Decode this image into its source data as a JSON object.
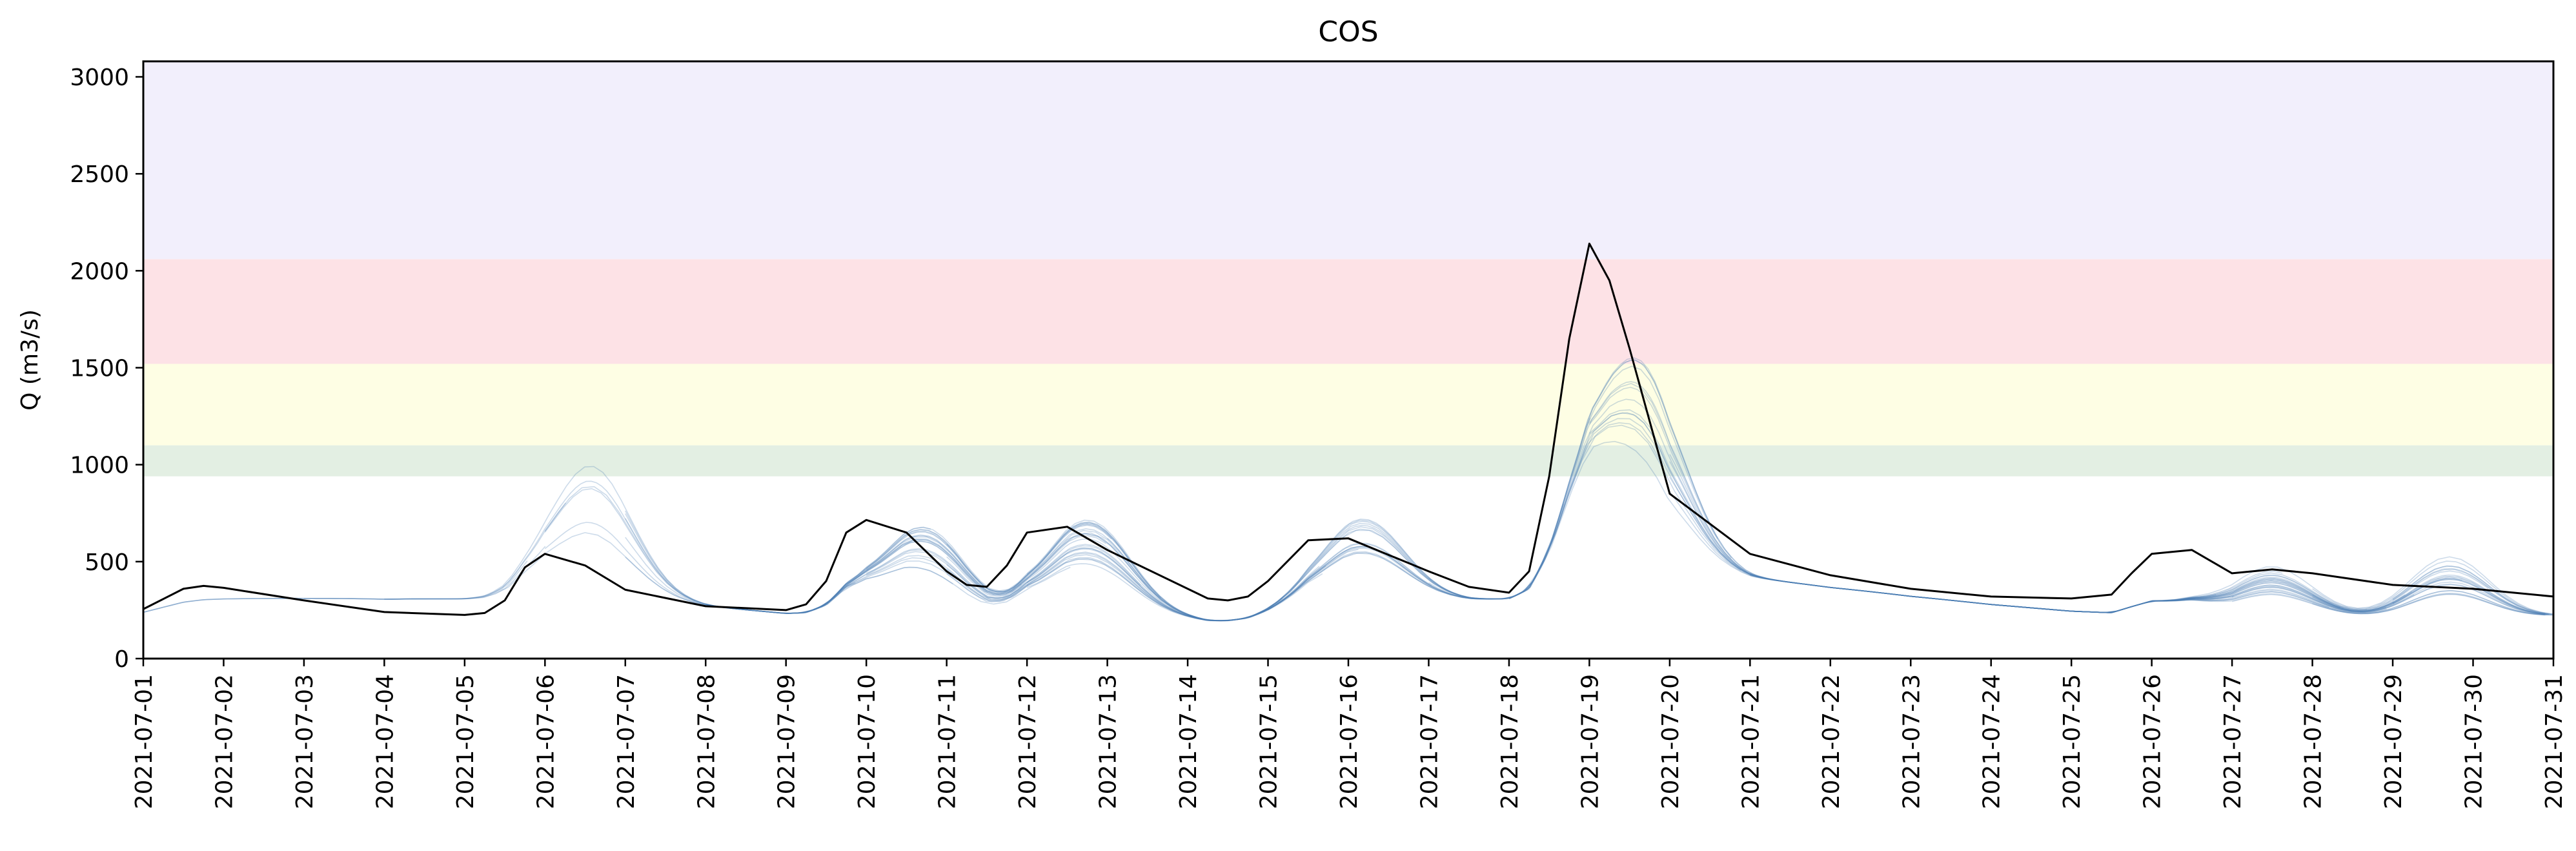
{
  "chart_data": {
    "type": "line",
    "title": "COS",
    "xlabel": "",
    "ylabel": "Q (m3/s)",
    "xlim": [
      "2021-07-01",
      "2021-07-31"
    ],
    "ylim": [
      0,
      3080
    ],
    "y_ticks": [
      0,
      500,
      1000,
      1500,
      2000,
      2500,
      3000
    ],
    "x_ticks": [
      "2021-07-01",
      "2021-07-02",
      "2021-07-03",
      "2021-07-04",
      "2021-07-05",
      "2021-07-06",
      "2021-07-07",
      "2021-07-08",
      "2021-07-09",
      "2021-07-10",
      "2021-07-11",
      "2021-07-12",
      "2021-07-13",
      "2021-07-14",
      "2021-07-15",
      "2021-07-16",
      "2021-07-17",
      "2021-07-18",
      "2021-07-19",
      "2021-07-20",
      "2021-07-21",
      "2021-07-22",
      "2021-07-23",
      "2021-07-24",
      "2021-07-25",
      "2021-07-26",
      "2021-07-27",
      "2021-07-28",
      "2021-07-29",
      "2021-07-30",
      "2021-07-31"
    ],
    "grid": false,
    "threshold_bands": [
      {
        "from": 940,
        "to": 1100,
        "color": "#e3efe3"
      },
      {
        "from": 1100,
        "to": 1520,
        "color": "#fefee4"
      },
      {
        "from": 1520,
        "to": 2060,
        "color": "#fde2e6"
      },
      {
        "from": 2060,
        "to": 3080,
        "color": "#f2effc"
      }
    ],
    "series": [
      {
        "color": "#000000",
        "x": [
          "2021-07-01",
          "2021-07-01T12:00",
          "2021-07-01T18:00",
          "2021-07-02",
          "2021-07-03",
          "2021-07-04",
          "2021-07-05",
          "2021-07-05T06:00",
          "2021-07-05T12:00",
          "2021-07-05T18:00",
          "2021-07-06",
          "2021-07-06T12:00",
          "2021-07-07",
          "2021-07-08",
          "2021-07-09",
          "2021-07-09T06:00",
          "2021-07-09T12:00",
          "2021-07-09T18:00",
          "2021-07-10",
          "2021-07-10T12:00",
          "2021-07-11",
          "2021-07-11T06:00",
          "2021-07-11T12:00",
          "2021-07-11T18:00",
          "2021-07-12",
          "2021-07-12T12:00",
          "2021-07-13",
          "2021-07-14",
          "2021-07-14T06:00",
          "2021-07-14T12:00",
          "2021-07-14T18:00",
          "2021-07-15",
          "2021-07-15T12:00",
          "2021-07-16",
          "2021-07-17",
          "2021-07-17T12:00",
          "2021-07-18",
          "2021-07-18T06:00",
          "2021-07-18T12:00",
          "2021-07-18T18:00",
          "2021-07-19",
          "2021-07-19T06:00",
          "2021-07-19T12:00",
          "2021-07-20",
          "2021-07-21",
          "2021-07-22",
          "2021-07-23",
          "2021-07-24",
          "2021-07-25",
          "2021-07-25T12:00",
          "2021-07-25T18:00",
          "2021-07-26",
          "2021-07-26T12:00",
          "2021-07-27",
          "2021-07-27T12:00",
          "2021-07-28",
          "2021-07-29",
          "2021-07-30",
          "2021-07-31"
        ],
        "y": [
          255,
          360,
          375,
          365,
          300,
          240,
          225,
          235,
          300,
          470,
          540,
          480,
          355,
          270,
          250,
          280,
          400,
          650,
          715,
          650,
          450,
          380,
          370,
          480,
          650,
          680,
          560,
          360,
          310,
          300,
          320,
          400,
          610,
          620,
          450,
          370,
          340,
          450,
          940,
          1650,
          2140,
          1950,
          1600,
          850,
          540,
          430,
          360,
          320,
          310,
          330,
          440,
          540,
          560,
          440,
          460,
          440,
          380,
          360,
          320
        ],
        "stroke_width": 3
      }
    ]
  }
}
